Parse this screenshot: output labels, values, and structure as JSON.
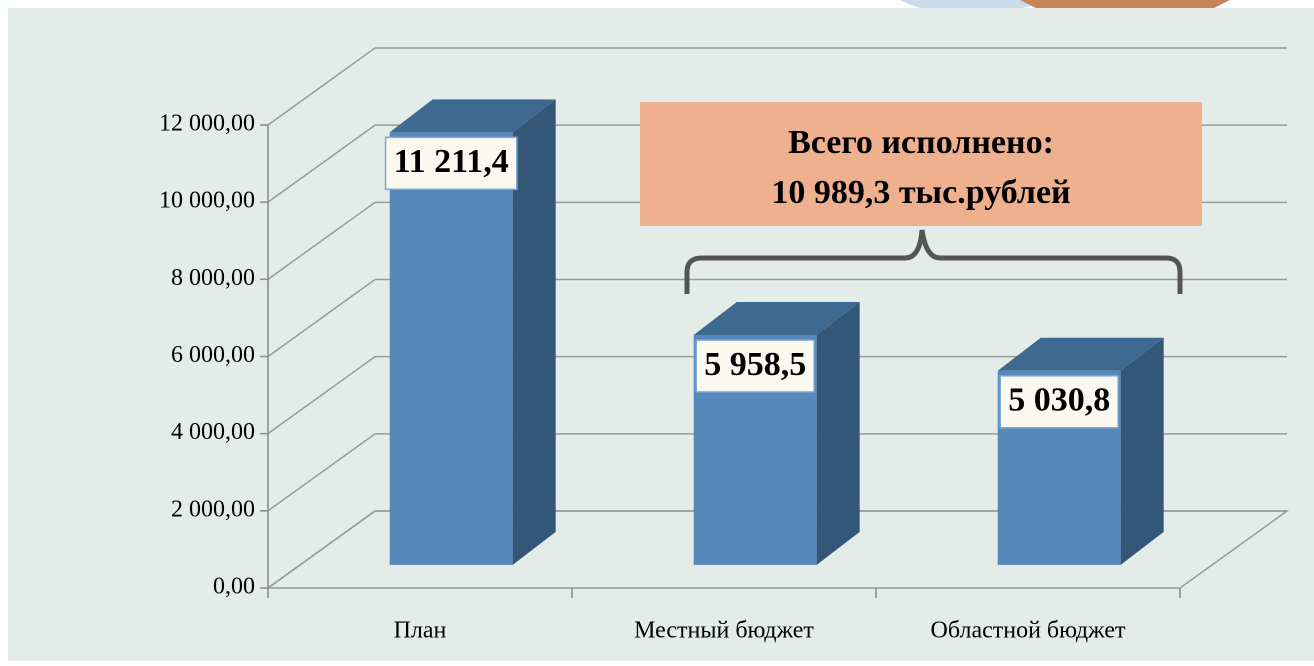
{
  "chart_data": {
    "type": "bar3d",
    "categories": [
      "План",
      "Местный бюджет",
      "Областной бюджет"
    ],
    "values": [
      11211.4,
      5958.5,
      5030.8
    ],
    "value_labels": [
      "11 211,4",
      "5 958,5",
      "5 030,8"
    ],
    "color": "#5588bb",
    "ylim": [
      0,
      12000
    ],
    "yticks": [
      {
        "value": 0,
        "label": "0,00"
      },
      {
        "value": 2000,
        "label": "2 000,00"
      },
      {
        "value": 4000,
        "label": "4 000,00"
      },
      {
        "value": 6000,
        "label": "6 000,00"
      },
      {
        "value": 8000,
        "label": "8 000,00"
      },
      {
        "value": 10000,
        "label": "10 000,00"
      },
      {
        "value": 12000,
        "label": "12 000,00"
      }
    ],
    "grid": true,
    "annotation": [
      "Всего исполнено:",
      "10 989,3 тыс.рублей"
    ]
  }
}
